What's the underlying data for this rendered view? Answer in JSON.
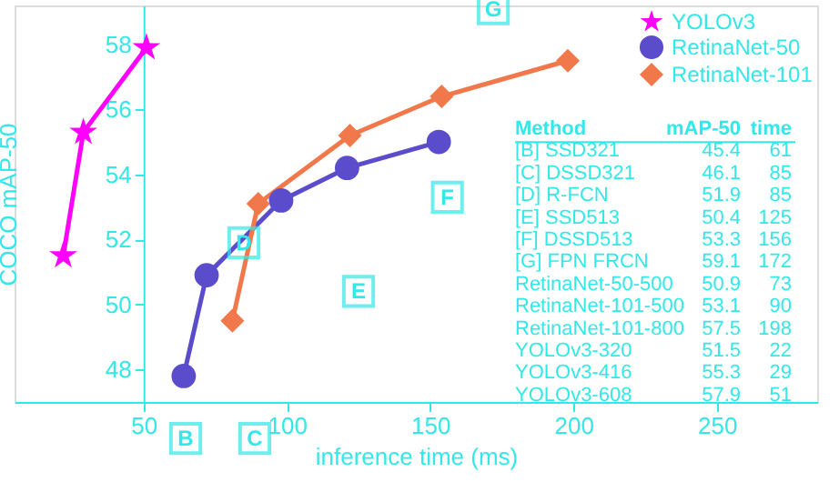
{
  "chart_data": {
    "type": "line",
    "xlabel": "inference time (ms)",
    "ylabel": "COCO mAP-50",
    "xlim": [
      5,
      285
    ],
    "ylim": [
      47,
      59.2
    ],
    "xticks": [
      50,
      100,
      150,
      200,
      250
    ],
    "yticks": [
      48,
      50,
      52,
      54,
      56,
      58
    ],
    "grid": false,
    "legend": "top right",
    "line_style": "solid",
    "series": [
      {
        "name": "YOLOv3",
        "color": "#ff00ff",
        "marker": "star",
        "x": [
          22,
          29,
          51
        ],
        "values": [
          51.5,
          55.3,
          57.9
        ]
      },
      {
        "name": "RetinaNet-50",
        "color": "#5b4ccc",
        "marker": "circle",
        "x": [
          64,
          72,
          98,
          121,
          153
        ],
        "values": [
          47.8,
          50.9,
          53.2,
          54.2,
          55.0
        ]
      },
      {
        "name": "RetinaNet-101",
        "color": "#f0784a",
        "marker": "diamond",
        "x": [
          81,
          90,
          122,
          154,
          198
        ],
        "values": [
          49.5,
          53.1,
          55.2,
          56.4,
          57.5
        ]
      }
    ],
    "annotations": [
      "B",
      "C",
      {
        "text": "D",
        "x": 85,
        "y": 51.9
      },
      {
        "text": "E",
        "x": 125,
        "y": 50.4
      },
      {
        "text": "F",
        "x": 156,
        "y": 53.3
      },
      {
        "text": "G",
        "x": 172,
        "y": 59.1
      },
      "Method\tmAP-50\ttime",
      "[B] SSD321\t45.4\t61",
      "[C] DSSD321\t46.1\t85",
      "[D] R-FCN\t51.9\t85",
      "[E] SSD513\t50.4\t125",
      "[F] DSSD513\t53.3\t156",
      "[G] FPN FRCN\t59.1\t172",
      "RetinaNet-50-500\t50.9\t73",
      "RetinaNet-101-500\t53.1\t90",
      "RetinaNet-101-800\t57.5\t198",
      "YOLOv3-320\t51.5\t22",
      "YOLOv3-416\t55.3\t29",
      "YOLOv3-608\t57.9\t51"
    ]
  }
}
